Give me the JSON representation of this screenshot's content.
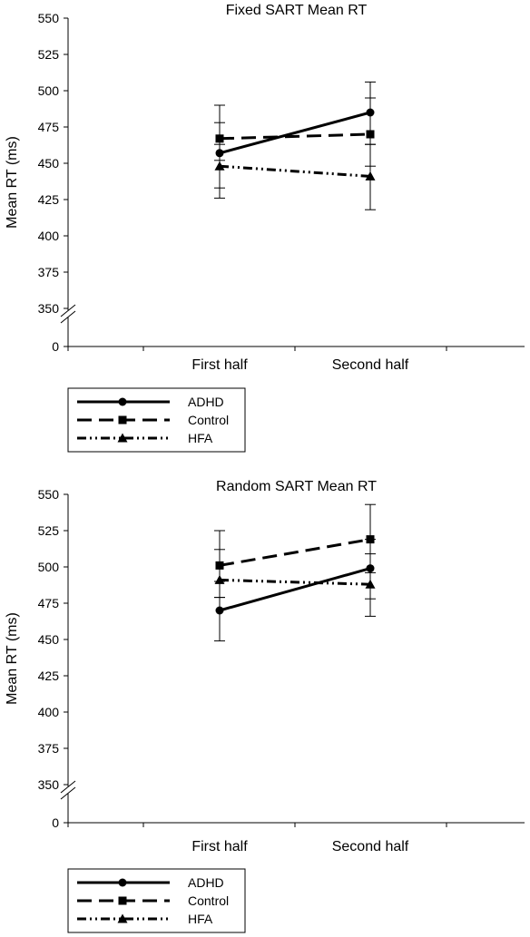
{
  "chart_data": [
    {
      "type": "line",
      "title": "Fixed SART Mean RT",
      "ylabel": "Mean RT (ms)",
      "xlabel": "",
      "categories": [
        "First half",
        "Second half"
      ],
      "yticks": [
        0,
        350,
        375,
        400,
        425,
        450,
        475,
        500,
        525,
        550
      ],
      "ylim": [
        350,
        550
      ],
      "axis_break": true,
      "series": [
        {
          "name": "ADHD",
          "marker": "circle",
          "dash": "solid",
          "values": [
            457,
            485
          ],
          "err_low": [
            426,
            463
          ],
          "err_high": [
            490,
            506
          ]
        },
        {
          "name": "Control",
          "marker": "square",
          "dash": "dashed",
          "values": [
            467,
            470
          ],
          "err_low": [
            452,
            448
          ],
          "err_high": [
            478,
            495
          ]
        },
        {
          "name": "HFA",
          "marker": "triangle",
          "dash": "dash-dot-dot",
          "values": [
            448,
            441
          ],
          "err_low": [
            433,
            418
          ],
          "err_high": [
            463,
            463
          ]
        }
      ],
      "legend_position": "below"
    },
    {
      "type": "line",
      "title": "Random SART Mean RT",
      "ylabel": "Mean RT (ms)",
      "xlabel": "",
      "categories": [
        "First half",
        "Second half"
      ],
      "yticks": [
        0,
        350,
        375,
        400,
        425,
        450,
        475,
        500,
        525,
        550
      ],
      "ylim": [
        350,
        550
      ],
      "axis_break": true,
      "series": [
        {
          "name": "ADHD",
          "marker": "circle",
          "dash": "solid",
          "values": [
            470,
            499
          ],
          "err_low": [
            449,
            478
          ],
          "err_high": [
            490,
            519
          ]
        },
        {
          "name": "Control",
          "marker": "square",
          "dash": "dashed",
          "values": [
            501,
            519
          ],
          "err_low": [
            479,
            496
          ],
          "err_high": [
            525,
            543
          ]
        },
        {
          "name": "HFA",
          "marker": "triangle",
          "dash": "dash-dot-dot",
          "values": [
            491,
            488
          ],
          "err_low": [
            479,
            466
          ],
          "err_high": [
            512,
            509
          ]
        }
      ],
      "legend_position": "below"
    }
  ]
}
